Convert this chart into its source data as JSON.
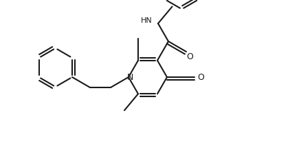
{
  "bg_color": "#ffffff",
  "line_color": "#1a1a1a",
  "line_width": 1.5,
  "figsize": [
    4.22,
    2.12
  ],
  "dpi": 100,
  "xlim": [
    0,
    422
  ],
  "ylim": [
    0,
    212
  ]
}
